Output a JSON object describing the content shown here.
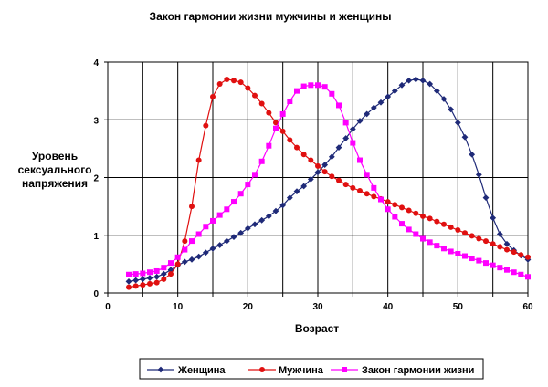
{
  "chart_data": {
    "type": "line",
    "title": "Закон гармонии жизни мужчины и женщины",
    "xlabel": "Возраст",
    "ylabel": [
      "Уровень",
      "сексуального",
      "напряжения"
    ],
    "xlim": [
      0,
      60
    ],
    "ylim": [
      0,
      4
    ],
    "xticks": [
      "0",
      "10",
      "20",
      "30",
      "40",
      "50",
      "60"
    ],
    "yticks": [
      "0",
      "1",
      "2",
      "3",
      "4"
    ],
    "x_tick_values": [
      0,
      10,
      20,
      30,
      40,
      50,
      60
    ],
    "y_tick_values": [
      0,
      1,
      2,
      3,
      4
    ],
    "x_grid_values": [
      0,
      5,
      10,
      15,
      20,
      25,
      30,
      35,
      40,
      45,
      50,
      55,
      60
    ],
    "grid": true,
    "legend": "bottom",
    "x": [
      3,
      4,
      5,
      6,
      7,
      8,
      9,
      10,
      11,
      12,
      13,
      14,
      15,
      16,
      17,
      18,
      19,
      20,
      21,
      22,
      23,
      24,
      25,
      26,
      27,
      28,
      29,
      30,
      31,
      32,
      33,
      34,
      35,
      36,
      37,
      38,
      39,
      40,
      41,
      42,
      43,
      44,
      45,
      46,
      47,
      48,
      49,
      50,
      51,
      52,
      53,
      54,
      55,
      56,
      57,
      58,
      59,
      60
    ],
    "series": [
      {
        "name": "Женщина",
        "color": "#1f2a78",
        "marker": "diamond",
        "values": [
          0.2,
          0.22,
          0.24,
          0.26,
          0.28,
          0.33,
          0.4,
          0.48,
          0.54,
          0.58,
          0.63,
          0.7,
          0.77,
          0.83,
          0.9,
          0.97,
          1.04,
          1.12,
          1.19,
          1.26,
          1.33,
          1.42,
          1.52,
          1.65,
          1.76,
          1.85,
          1.97,
          2.09,
          2.22,
          2.36,
          2.52,
          2.68,
          2.84,
          2.98,
          3.1,
          3.21,
          3.3,
          3.4,
          3.5,
          3.6,
          3.68,
          3.7,
          3.68,
          3.62,
          3.5,
          3.36,
          3.18,
          2.95,
          2.7,
          2.4,
          2.05,
          1.65,
          1.3,
          1.02,
          0.85,
          0.74,
          0.65,
          0.58
        ]
      },
      {
        "name": "Мужчина",
        "color": "#e01010",
        "marker": "circle",
        "values": [
          0.1,
          0.12,
          0.14,
          0.16,
          0.18,
          0.24,
          0.33,
          0.5,
          0.9,
          1.5,
          2.3,
          2.9,
          3.4,
          3.62,
          3.7,
          3.68,
          3.65,
          3.55,
          3.42,
          3.28,
          3.12,
          2.95,
          2.8,
          2.65,
          2.52,
          2.4,
          2.3,
          2.2,
          2.1,
          2.02,
          1.95,
          1.88,
          1.82,
          1.77,
          1.72,
          1.67,
          1.63,
          1.58,
          1.53,
          1.48,
          1.43,
          1.38,
          1.33,
          1.29,
          1.24,
          1.19,
          1.14,
          1.09,
          1.04,
          0.99,
          0.94,
          0.9,
          0.85,
          0.8,
          0.75,
          0.71,
          0.66,
          0.62
        ]
      },
      {
        "name": "Закон гармонии жизни",
        "color": "#ff00ff",
        "marker": "square",
        "values": [
          0.32,
          0.33,
          0.34,
          0.36,
          0.38,
          0.44,
          0.52,
          0.62,
          0.75,
          0.9,
          1.02,
          1.15,
          1.25,
          1.35,
          1.45,
          1.58,
          1.72,
          1.88,
          2.05,
          2.28,
          2.55,
          2.85,
          3.1,
          3.32,
          3.5,
          3.58,
          3.6,
          3.6,
          3.57,
          3.45,
          3.25,
          2.95,
          2.6,
          2.3,
          2.05,
          1.82,
          1.62,
          1.45,
          1.32,
          1.2,
          1.1,
          1.02,
          0.94,
          0.88,
          0.82,
          0.77,
          0.72,
          0.68,
          0.64,
          0.6,
          0.56,
          0.52,
          0.48,
          0.44,
          0.4,
          0.36,
          0.32,
          0.28
        ]
      }
    ]
  }
}
